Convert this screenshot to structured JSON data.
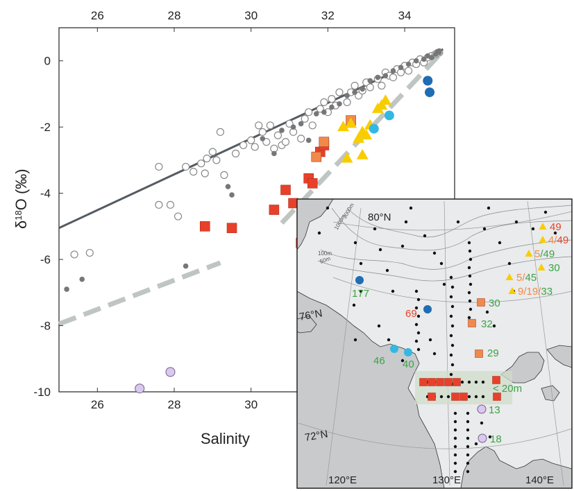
{
  "chart_data": [
    {
      "type": "scatter",
      "xlabel": "Salinity",
      "ylabel": "δ18O (‰)",
      "xlim": [
        25,
        35.3
      ],
      "ylim": [
        -10,
        1
      ],
      "xticks_bottom": [
        "26",
        "28",
        "30"
      ],
      "xticks_top": [
        "26",
        "28",
        "30",
        "32",
        "34"
      ],
      "yticks": [
        "0",
        "-2",
        "-4",
        "-6",
        "-8",
        "-10"
      ],
      "grid": false,
      "series": [
        {
          "marker": "open-circle",
          "color": "#888888",
          "points": [
            [
              25.4,
              -5.85
            ],
            [
              25.8,
              -5.8
            ],
            [
              27.6,
              -3.2
            ],
            [
              27.6,
              -4.35
            ],
            [
              27.9,
              -4.35
            ],
            [
              28.1,
              -4.7
            ],
            [
              28.3,
              -3.2
            ],
            [
              28.5,
              -3.35
            ],
            [
              28.7,
              -3.1
            ],
            [
              28.8,
              -3.4
            ],
            [
              28.85,
              -2.95
            ],
            [
              29.0,
              -2.75
            ],
            [
              29.1,
              -3.0
            ],
            [
              29.2,
              -2.15
            ],
            [
              29.3,
              -3.45
            ],
            [
              29.6,
              -2.8
            ],
            [
              29.8,
              -2.55
            ],
            [
              30.0,
              -2.4
            ],
            [
              30.1,
              -2.6
            ],
            [
              30.2,
              -1.95
            ],
            [
              30.3,
              -2.15
            ],
            [
              30.4,
              -2.45
            ],
            [
              30.5,
              -1.95
            ],
            [
              30.6,
              -2.65
            ],
            [
              30.7,
              -2.25
            ],
            [
              30.8,
              -2.55
            ],
            [
              30.9,
              -2.45
            ],
            [
              31.0,
              -1.9
            ],
            [
              31.1,
              -2.15
            ],
            [
              31.3,
              -2.35
            ],
            [
              31.4,
              -1.75
            ],
            [
              31.5,
              -1.55
            ],
            [
              31.6,
              -1.95
            ],
            [
              31.8,
              -1.45
            ],
            [
              31.9,
              -1.25
            ],
            [
              32.0,
              -1.55
            ],
            [
              32.1,
              -1.15
            ],
            [
              32.2,
              -1.35
            ],
            [
              32.3,
              -0.95
            ],
            [
              32.5,
              -1.25
            ],
            [
              32.6,
              -0.95
            ],
            [
              32.7,
              -0.75
            ],
            [
              32.8,
              -1.05
            ],
            [
              32.9,
              -0.9
            ],
            [
              33.0,
              -0.65
            ],
            [
              33.1,
              -0.8
            ],
            [
              33.3,
              -0.55
            ],
            [
              33.4,
              -0.75
            ],
            [
              33.5,
              -0.35
            ],
            [
              33.6,
              -0.45
            ],
            [
              33.7,
              -0.5
            ],
            [
              33.8,
              -0.25
            ],
            [
              33.9,
              -0.35
            ],
            [
              34.0,
              -0.15
            ],
            [
              34.1,
              -0.3
            ],
            [
              34.2,
              -0.05
            ],
            [
              34.3,
              -0.1
            ],
            [
              34.4,
              0.05
            ],
            [
              34.5,
              -0.05
            ],
            [
              34.6,
              0.1
            ],
            [
              34.7,
              0.15
            ],
            [
              34.8,
              0.2
            ],
            [
              34.9,
              0.25
            ]
          ]
        },
        {
          "marker": "small-gray-dot",
          "color": "#777777",
          "points": [
            [
              25.2,
              -6.9
            ],
            [
              25.6,
              -6.6
            ],
            [
              28.3,
              -6.2
            ],
            [
              29.4,
              -3.8
            ],
            [
              29.5,
              -4.05
            ],
            [
              30.3,
              -2.35
            ],
            [
              30.6,
              -2.8
            ],
            [
              30.8,
              -2.1
            ],
            [
              31.1,
              -2.0
            ],
            [
              31.3,
              -1.9
            ],
            [
              31.5,
              -2.4
            ],
            [
              31.7,
              -1.6
            ],
            [
              31.9,
              -1.55
            ],
            [
              32.1,
              -1.4
            ],
            [
              32.3,
              -1.3
            ],
            [
              32.5,
              -1.05
            ],
            [
              32.7,
              -0.95
            ],
            [
              32.9,
              -0.85
            ],
            [
              33.1,
              -0.6
            ],
            [
              33.3,
              -0.5
            ],
            [
              33.5,
              -0.45
            ],
            [
              33.7,
              -0.3
            ],
            [
              33.9,
              -0.2
            ],
            [
              34.1,
              -0.1
            ],
            [
              34.3,
              0.0
            ],
            [
              34.5,
              0.05
            ],
            [
              34.6,
              0.15
            ],
            [
              34.7,
              0.1
            ],
            [
              34.8,
              0.2
            ],
            [
              34.85,
              0.28
            ],
            [
              34.9,
              0.3
            ],
            [
              34.9,
              0.25
            ]
          ]
        },
        {
          "marker": "red-square",
          "color": "#e8402a",
          "points": [
            [
              28.8,
              -5.0
            ],
            [
              29.5,
              -5.05
            ],
            [
              30.6,
              -4.5
            ],
            [
              30.9,
              -3.9
            ],
            [
              31.1,
              -4.3
            ],
            [
              31.3,
              -5.5
            ],
            [
              31.5,
              -3.55
            ],
            [
              31.6,
              -3.7
            ],
            [
              31.8,
              -2.75
            ],
            [
              31.9,
              -2.55
            ]
          ]
        },
        {
          "marker": "orange-square",
          "color": "#f08a4a",
          "points": [
            [
              31.7,
              -2.9
            ],
            [
              31.9,
              -2.45
            ],
            [
              32.6,
              -1.8
            ]
          ]
        },
        {
          "marker": "yellow-triangle",
          "color": "#f8cd00",
          "points": [
            [
              32.4,
              -2.0
            ],
            [
              32.5,
              -2.95
            ],
            [
              32.6,
              -1.9
            ],
            [
              32.8,
              -2.35
            ],
            [
              32.9,
              -2.15
            ],
            [
              32.9,
              -2.85
            ],
            [
              33.0,
              -2.25
            ],
            [
              33.1,
              -1.95
            ],
            [
              33.3,
              -1.45
            ],
            [
              33.4,
              -1.35
            ],
            [
              33.5,
              -1.2
            ]
          ]
        },
        {
          "marker": "dark-blue-circle",
          "color": "#1e6db5",
          "points": [
            [
              34.6,
              -0.6
            ],
            [
              34.65,
              -0.95
            ]
          ]
        },
        {
          "marker": "light-blue-circle",
          "color": "#34b7e3",
          "points": [
            [
              33.2,
              -2.05
            ],
            [
              33.6,
              -1.65
            ]
          ]
        },
        {
          "marker": "lavender-circle",
          "color": "#d9c9ec",
          "points": [
            [
              27.1,
              -9.9
            ],
            [
              27.9,
              -9.4
            ]
          ]
        }
      ],
      "lines": [
        {
          "style": "solid",
          "color": "#555b62",
          "from": [
            25.0,
            -5.05
          ],
          "to": [
            35.0,
            0.35
          ]
        },
        {
          "style": "dashed",
          "color": "#bfc6c1",
          "from": [
            25.0,
            -7.95
          ],
          "to": [
            29.2,
            -6.1
          ]
        },
        {
          "style": "dashed",
          "color": "#bfc6c1",
          "from": [
            30.8,
            -4.9
          ],
          "to": [
            35.0,
            0.3
          ]
        }
      ]
    }
  ],
  "map": {
    "lat_labels": [
      "80°N",
      "76°N",
      "72°N"
    ],
    "lon_labels": [
      "120°E",
      "130°E",
      "140°E"
    ],
    "depth_labels": [
      "3000m",
      "1000m",
      "100m",
      "50m"
    ],
    "shelf_label": "< 20m",
    "station_labels": [
      {
        "id": "s177",
        "parts": [
          {
            "text": "177",
            "color": "#3da245"
          }
        ]
      },
      {
        "id": "s69",
        "parts": [
          {
            "text": "69",
            "color": "#e8402a"
          }
        ]
      },
      {
        "id": "s46",
        "parts": [
          {
            "text": "46",
            "color": "#3da245"
          }
        ]
      },
      {
        "id": "s40",
        "parts": [
          {
            "text": "40",
            "color": "#3da245"
          }
        ]
      },
      {
        "id": "s30a",
        "parts": [
          {
            "text": "30",
            "color": "#3da245"
          }
        ]
      },
      {
        "id": "s32",
        "parts": [
          {
            "text": "32",
            "color": "#3da245"
          }
        ]
      },
      {
        "id": "s29",
        "parts": [
          {
            "text": "29",
            "color": "#3da245"
          }
        ]
      },
      {
        "id": "s13",
        "parts": [
          {
            "text": "13",
            "color": "#3da245"
          }
        ]
      },
      {
        "id": "s18",
        "parts": [
          {
            "text": "18",
            "color": "#3da245"
          }
        ]
      },
      {
        "id": "s49a",
        "parts": [
          {
            "text": "49",
            "color": "#e8402a"
          }
        ]
      },
      {
        "id": "s4-49",
        "parts": [
          {
            "text": "4",
            "color": "#f08a4a"
          },
          {
            "text": "/",
            "color": "#f08a4a"
          },
          {
            "text": "49",
            "color": "#e8402a"
          }
        ]
      },
      {
        "id": "s5-49",
        "parts": [
          {
            "text": "5",
            "color": "#f08a4a"
          },
          {
            "text": "/",
            "color": "#3da245"
          },
          {
            "text": "49",
            "color": "#3da245"
          }
        ]
      },
      {
        "id": "s30b",
        "parts": [
          {
            "text": "30",
            "color": "#3da245"
          }
        ]
      },
      {
        "id": "s5-45",
        "parts": [
          {
            "text": "5",
            "color": "#f08a4a"
          },
          {
            "text": "/",
            "color": "#f08a4a"
          },
          {
            "text": "45",
            "color": "#3da245"
          }
        ]
      },
      {
        "id": "s9-19-33",
        "parts": [
          {
            "text": "9",
            "color": "#f08a4a"
          },
          {
            "text": "/",
            "color": "#f08a4a"
          },
          {
            "text": "19",
            "color": "#f08a4a"
          },
          {
            "text": "/",
            "color": "#f08a4a"
          },
          {
            "text": "33",
            "color": "#3da245"
          }
        ]
      }
    ]
  }
}
